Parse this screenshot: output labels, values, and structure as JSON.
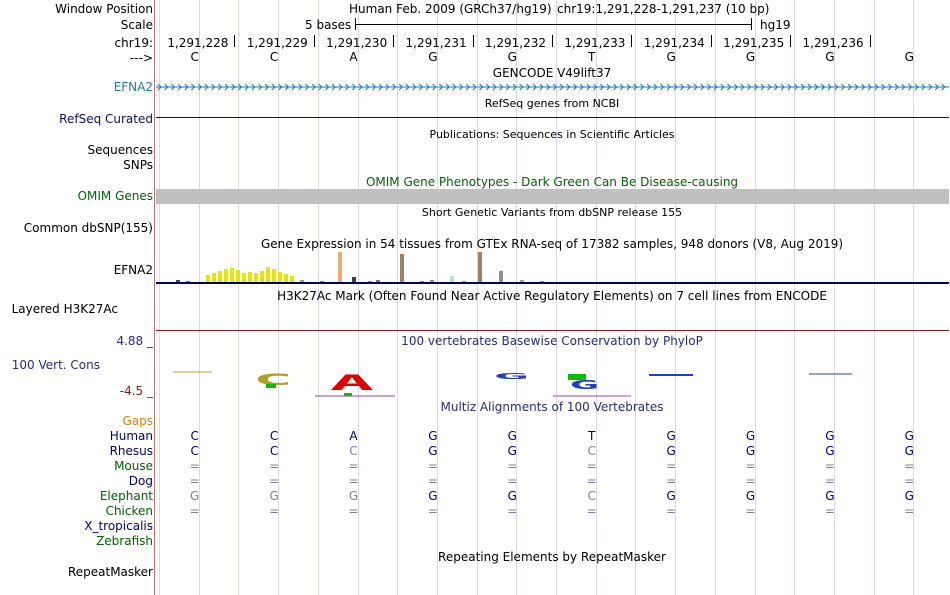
{
  "labels": {
    "window_position": "Window Position",
    "scale": "Scale",
    "chrom": "chr19:",
    "strand": "--->",
    "efna2_gene": "EFNA2",
    "refseq": "RefSeq Curated",
    "sequences": "Sequences",
    "snps": "SNPs",
    "omim_genes": "OMIM Genes",
    "common_dbsnp": "Common dbSNP(155)",
    "efna2_gtex": "EFNA2",
    "layered": "Layered H3K27Ac",
    "phylop_max": "4.88 _",
    "vert_cons": "100 Vert. Cons",
    "phylop_min": "-4.5 _"
  },
  "header": {
    "assembly": "Human Feb. 2009 (GRCh37/hg19)",
    "position": "chr19:1,291,228-1,291,237 (10 bp)",
    "scale_text": "5 bases",
    "scale_db": "hg19",
    "coordinates": [
      "1,291,228",
      "1,291,229",
      "1,291,230",
      "1,291,231",
      "1,291,232",
      "1,291,233",
      "1,291,234",
      "1,291,235",
      "1,291,236"
    ],
    "bases": [
      "C",
      "C",
      "A",
      "G",
      "G",
      "T",
      "G",
      "G",
      "G",
      "G"
    ]
  },
  "tracks": {
    "gencode_title": "GENCODE V49lift37",
    "refseq_title": "RefSeq genes from NCBI",
    "publications_title": "Publications: Sequences in Scientific Articles",
    "omim_title": "OMIM Gene Phenotypes - Dark Green Can Be Disease-causing",
    "dbsnp_title": "Short Genetic Variants from dbSNP release 155",
    "gtex_title": "Gene Expression in 54 tissues from GTEx RNA-seq of 17382 samples, 948 donors (V8, Aug 2019)",
    "h3k27ac_title": "H3K27Ac Mark (Often Found Near Active Regulatory Elements) on 7 cell lines from ENCODE",
    "phylop_title": "100 vertebrates Basewise Conservation by PhyloP",
    "multiz_title": "Multiz Alignments of 100 Vertebrates",
    "repeatmasker_title": "Repeating Elements by RepeatMasker"
  },
  "multiz": {
    "gaps_label": "Gaps",
    "species": [
      {
        "name": "Human",
        "color": "#000080",
        "bases": [
          "C",
          "C",
          "A",
          "G",
          "G",
          "T",
          "G",
          "G",
          "G",
          "G"
        ],
        "faded": [
          false,
          false,
          false,
          false,
          false,
          false,
          false,
          false,
          false,
          false
        ]
      },
      {
        "name": "Rhesus",
        "color": "#000080",
        "bases": [
          "C",
          "C",
          "C",
          "G",
          "G",
          "C",
          "G",
          "G",
          "G",
          "G"
        ],
        "faded": [
          false,
          false,
          true,
          false,
          false,
          true,
          false,
          false,
          false,
          false
        ]
      },
      {
        "name": "Mouse",
        "color": "#006400",
        "bases": [
          "=",
          "=",
          "=",
          "=",
          "=",
          "=",
          "=",
          "=",
          "=",
          "="
        ],
        "faded": [
          true,
          true,
          true,
          true,
          true,
          true,
          true,
          true,
          true,
          true
        ]
      },
      {
        "name": "Dog",
        "color": "#000080",
        "bases": [
          "=",
          "=",
          "=",
          "=",
          "=",
          "=",
          "=",
          "=",
          "=",
          "="
        ],
        "faded": [
          true,
          true,
          true,
          true,
          true,
          true,
          true,
          true,
          true,
          true
        ]
      },
      {
        "name": "Elephant",
        "color": "#006400",
        "bases": [
          "G",
          "G",
          "G",
          "G",
          "G",
          "C",
          "G",
          "G",
          "G",
          "G"
        ],
        "faded": [
          true,
          true,
          true,
          false,
          false,
          true,
          false,
          false,
          false,
          false
        ]
      },
      {
        "name": "Chicken",
        "color": "#006400",
        "bases": [
          "=",
          "=",
          "=",
          "=",
          "=",
          "=",
          "=",
          "=",
          "=",
          "="
        ],
        "faded": [
          true,
          true,
          true,
          true,
          true,
          true,
          true,
          true,
          true,
          true
        ]
      },
      {
        "name": "X_tropicalis",
        "color": "#000080",
        "bases": [
          "",
          "",
          "",
          "",
          "",
          "",
          "",
          "",
          "",
          ""
        ],
        "faded": [
          false,
          false,
          false,
          false,
          false,
          false,
          false,
          false,
          false,
          false
        ]
      },
      {
        "name": "Zebrafish",
        "color": "#006400",
        "bases": [
          "",
          "",
          "",
          "",
          "",
          "",
          "",
          "",
          "",
          ""
        ],
        "faded": [
          false,
          false,
          false,
          false,
          false,
          false,
          false,
          false,
          false,
          false
        ]
      }
    ]
  },
  "repeatmasker_label": "RepeatMasker",
  "colors": {
    "gencode_blue": "#1f77b4",
    "refseq_navy": "#0c0c78",
    "omim_green": "#006400",
    "gtex_yellow": "#e6e600",
    "gaps_orange": "#e08000",
    "phylop_navy": "#2a2a8a",
    "axis_brown": "#8b1a1a"
  }
}
